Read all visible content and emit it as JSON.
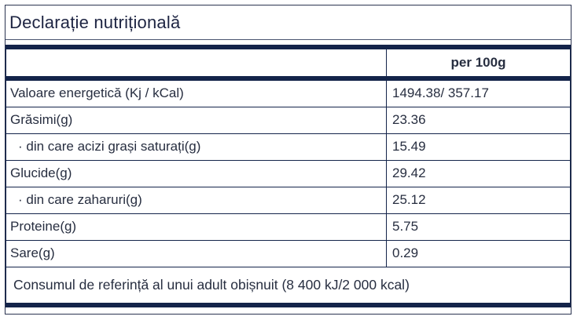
{
  "title": "Declarație nutrițională",
  "table": {
    "header": {
      "col1": "",
      "col2": "per 100g"
    },
    "rows": [
      {
        "label": "Valoare energetică (Kj / kCal)",
        "value": "1494.38/ 357.17"
      },
      {
        "label": "Grăsimi(g)",
        "value": "23.36"
      },
      {
        "label": "· din care acizi grași saturați(g)",
        "value": "15.49"
      },
      {
        "label": "Glucide(g)",
        "value": "29.42"
      },
      {
        "label": "· din care zaharuri(g)",
        "value": "25.12"
      },
      {
        "label": "Proteine(g)",
        "value": "5.75"
      },
      {
        "label": "Sare(g)",
        "value": "0.29"
      }
    ],
    "footer": "Consumul de referință al unui adult obișnuit (8 400 kJ/2 000 kcal)"
  },
  "colors": {
    "navy_bar": "#14244a",
    "text": "#272e40",
    "title": "#1d2442",
    "background": "#ffffff"
  }
}
